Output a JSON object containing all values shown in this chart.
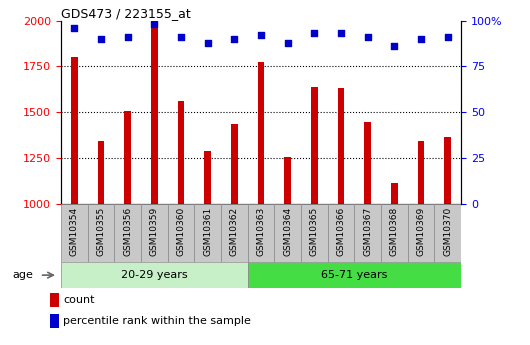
{
  "title": "GDS473 / 223155_at",
  "samples": [
    "GSM10354",
    "GSM10355",
    "GSM10356",
    "GSM10359",
    "GSM10360",
    "GSM10361",
    "GSM10362",
    "GSM10363",
    "GSM10364",
    "GSM10365",
    "GSM10366",
    "GSM10367",
    "GSM10368",
    "GSM10369",
    "GSM10370"
  ],
  "counts": [
    1800,
    1340,
    1505,
    1960,
    1560,
    1285,
    1435,
    1775,
    1255,
    1640,
    1630,
    1445,
    1115,
    1340,
    1365
  ],
  "percentile_ranks": [
    96,
    90,
    91,
    98,
    91,
    88,
    90,
    92,
    88,
    93,
    93,
    91,
    86,
    90,
    91
  ],
  "groups": [
    {
      "label": "20-29 years",
      "start": 0,
      "end": 7,
      "color": "#c8f0c8"
    },
    {
      "label": "65-71 years",
      "start": 7,
      "end": 15,
      "color": "#44dd44"
    }
  ],
  "bar_color": "#cc0000",
  "dot_color": "#0000cc",
  "ylim_left": [
    1000,
    2000
  ],
  "ylim_right": [
    0,
    100
  ],
  "yticks_left": [
    1000,
    1250,
    1500,
    1750,
    2000
  ],
  "yticks_right": [
    0,
    25,
    50,
    75,
    100
  ],
  "ytick_labels_right": [
    "0",
    "25",
    "50",
    "75",
    "100%"
  ],
  "grid_values": [
    1250,
    1500,
    1750
  ],
  "age_label": "age",
  "legend_count_label": "count",
  "legend_percentile_label": "percentile rank within the sample",
  "xtick_bg_color": "#c8c8c8",
  "xtick_border_color": "#888888",
  "plot_bg_color": "#ffffff"
}
